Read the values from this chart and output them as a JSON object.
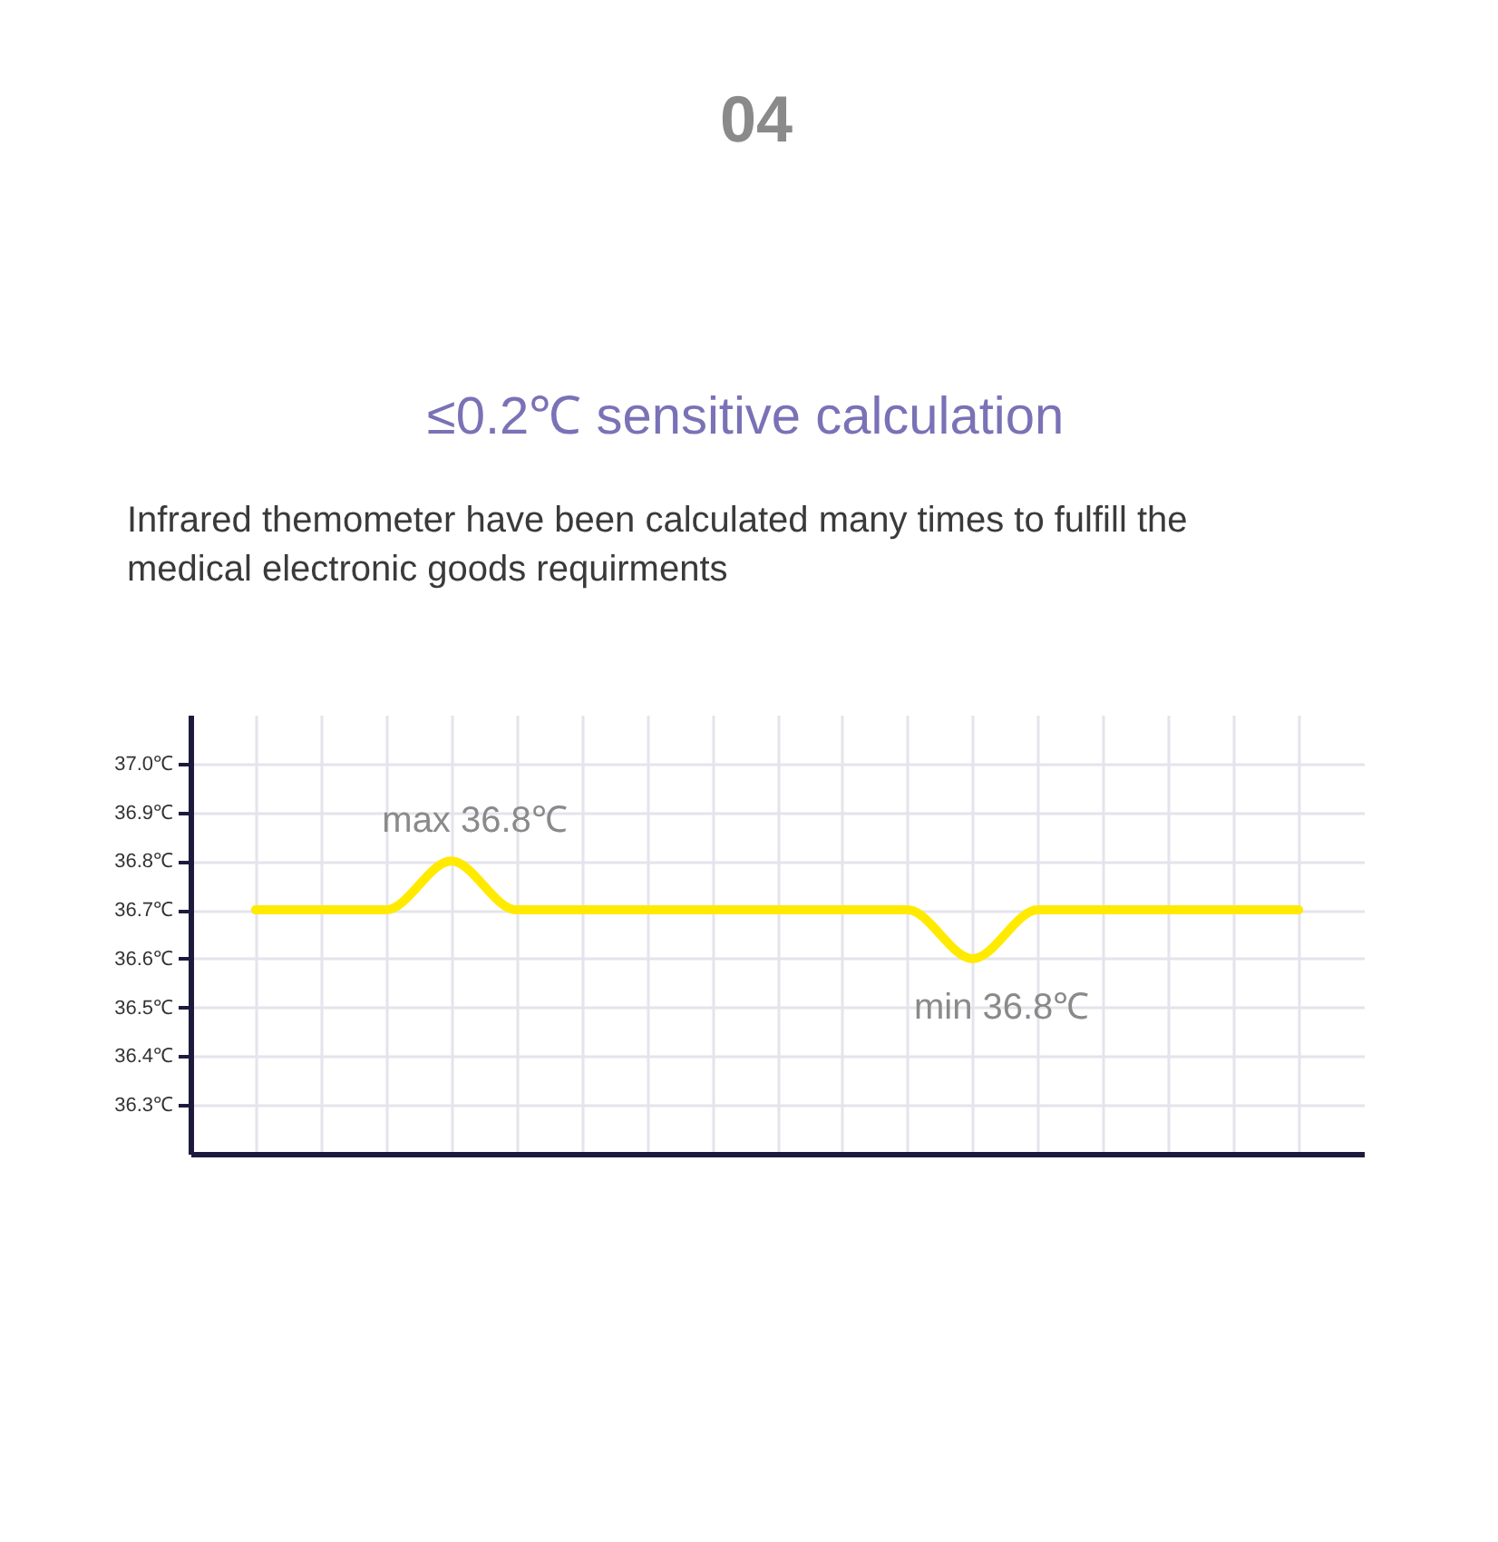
{
  "chart_data": {
    "type": "line",
    "title": "≤0.2℃ sensitive calculation",
    "subtitle": "Infrared themometer have been calculated many times to fulfill the medical electronic goods requirments",
    "categories": [
      null,
      null,
      null,
      null,
      null,
      null,
      null,
      null,
      null,
      null,
      null,
      null,
      null,
      null,
      null,
      null,
      null
    ],
    "series": [
      {
        "color": "#ffea00",
        "values": [
          36.7,
          36.7,
          36.7,
          36.8,
          36.7,
          36.7,
          36.7,
          36.7,
          36.7,
          36.7,
          36.7,
          36.6,
          36.7,
          36.7,
          36.7,
          36.7,
          36.7
        ]
      }
    ],
    "ylim": [
      36.2,
      37.1
    ],
    "yticks": [
      {
        "value": 36.3,
        "label": "36.3℃"
      },
      {
        "value": 36.4,
        "label": "36.4℃"
      },
      {
        "value": 36.5,
        "label": "36.5℃"
      },
      {
        "value": 36.6,
        "label": "36.6℃"
      },
      {
        "value": 36.7,
        "label": "36.7℃"
      },
      {
        "value": 36.8,
        "label": "36.8℃"
      },
      {
        "value": 36.9,
        "label": "36.9℃"
      },
      {
        "value": 37.0,
        "label": "37.0℃"
      }
    ],
    "tick_labels": "y",
    "grid": true,
    "annotations": [
      "04",
      {
        "text": "max 36.8℃",
        "y": 36.8
      },
      "min 36.8℃"
    ]
  }
}
